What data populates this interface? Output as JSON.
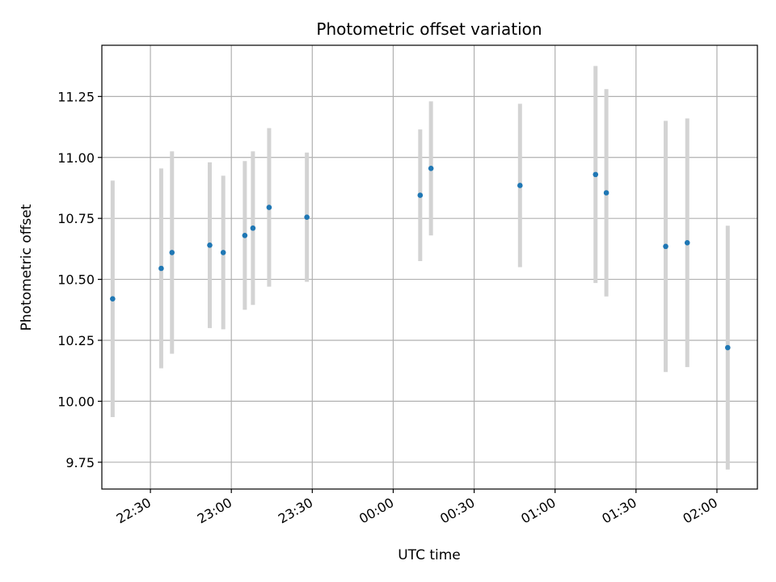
{
  "chart_data": {
    "type": "scatter",
    "title": "Photometric offset variation",
    "xlabel": "UTC time",
    "ylabel": "Photometric offset",
    "grid": true,
    "x_unit": "UTC time (hh:mm)",
    "x_ticks": [
      "22:30",
      "23:00",
      "23:30",
      "00:00",
      "00:30",
      "01:00",
      "01:30",
      "02:00"
    ],
    "x_tick_values": [
      "22:30",
      "23:00",
      "23:30",
      "00:00",
      "00:30",
      "01:00",
      "01:30",
      "02:00"
    ],
    "xlim": [
      "22:12",
      "02:15"
    ],
    "y_ticks": [
      "9.75",
      "10.00",
      "10.25",
      "10.50",
      "10.75",
      "11.00",
      "11.25"
    ],
    "y_tick_values": [
      9.75,
      10.0,
      10.25,
      10.5,
      10.75,
      11.0,
      11.25
    ],
    "ylim": [
      9.64,
      11.46
    ],
    "marker_color": "#1f77b4",
    "errorbar_color": "#d3d3d3",
    "points": [
      {
        "x": "22:16",
        "y": 10.42,
        "yerr": 0.485
      },
      {
        "x": "22:34",
        "y": 10.545,
        "yerr": 0.41
      },
      {
        "x": "22:38",
        "y": 10.61,
        "yerr": 0.415
      },
      {
        "x": "22:52",
        "y": 10.64,
        "yerr": 0.34
      },
      {
        "x": "22:57",
        "y": 10.61,
        "yerr": 0.315
      },
      {
        "x": "23:05",
        "y": 10.68,
        "yerr": 0.305
      },
      {
        "x": "23:08",
        "y": 10.71,
        "yerr": 0.315
      },
      {
        "x": "23:14",
        "y": 10.795,
        "yerr": 0.325
      },
      {
        "x": "23:28",
        "y": 10.755,
        "yerr": 0.265
      },
      {
        "x": "00:10",
        "y": 10.845,
        "yerr": 0.27
      },
      {
        "x": "00:14",
        "y": 10.955,
        "yerr": 0.275
      },
      {
        "x": "00:47",
        "y": 10.885,
        "yerr": 0.335
      },
      {
        "x": "01:15",
        "y": 10.93,
        "yerr": 0.445
      },
      {
        "x": "01:19",
        "y": 10.855,
        "yerr": 0.425
      },
      {
        "x": "01:41",
        "y": 10.635,
        "yerr": 0.515
      },
      {
        "x": "01:49",
        "y": 10.65,
        "yerr": 0.51
      },
      {
        "x": "02:04",
        "y": 10.22,
        "yerr": 0.5
      }
    ]
  }
}
